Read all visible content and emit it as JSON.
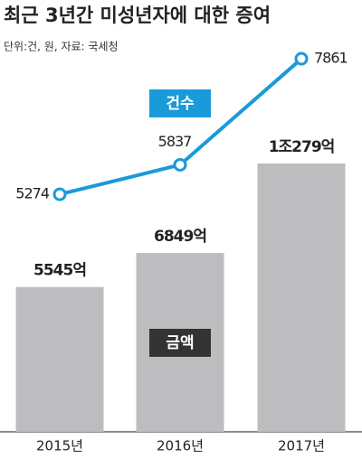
{
  "chart_data": {
    "type": "bar",
    "title": "최근 3년간 미성년자에 대한 증여",
    "subtitle": "단위:건, 원, 자료: 국세청",
    "categories": [
      "2015년",
      "2016년",
      "2017년"
    ],
    "series": [
      {
        "name": "금액",
        "type": "bar",
        "color": "#bdbdbf",
        "values": [
          5545,
          6849,
          10279
        ],
        "value_labels": [
          "5545억",
          "6849억",
          "1조279억"
        ]
      },
      {
        "name": "건수",
        "type": "line",
        "color": "#1a9ad9",
        "values": [
          5274,
          5837,
          7861
        ]
      }
    ]
  }
}
